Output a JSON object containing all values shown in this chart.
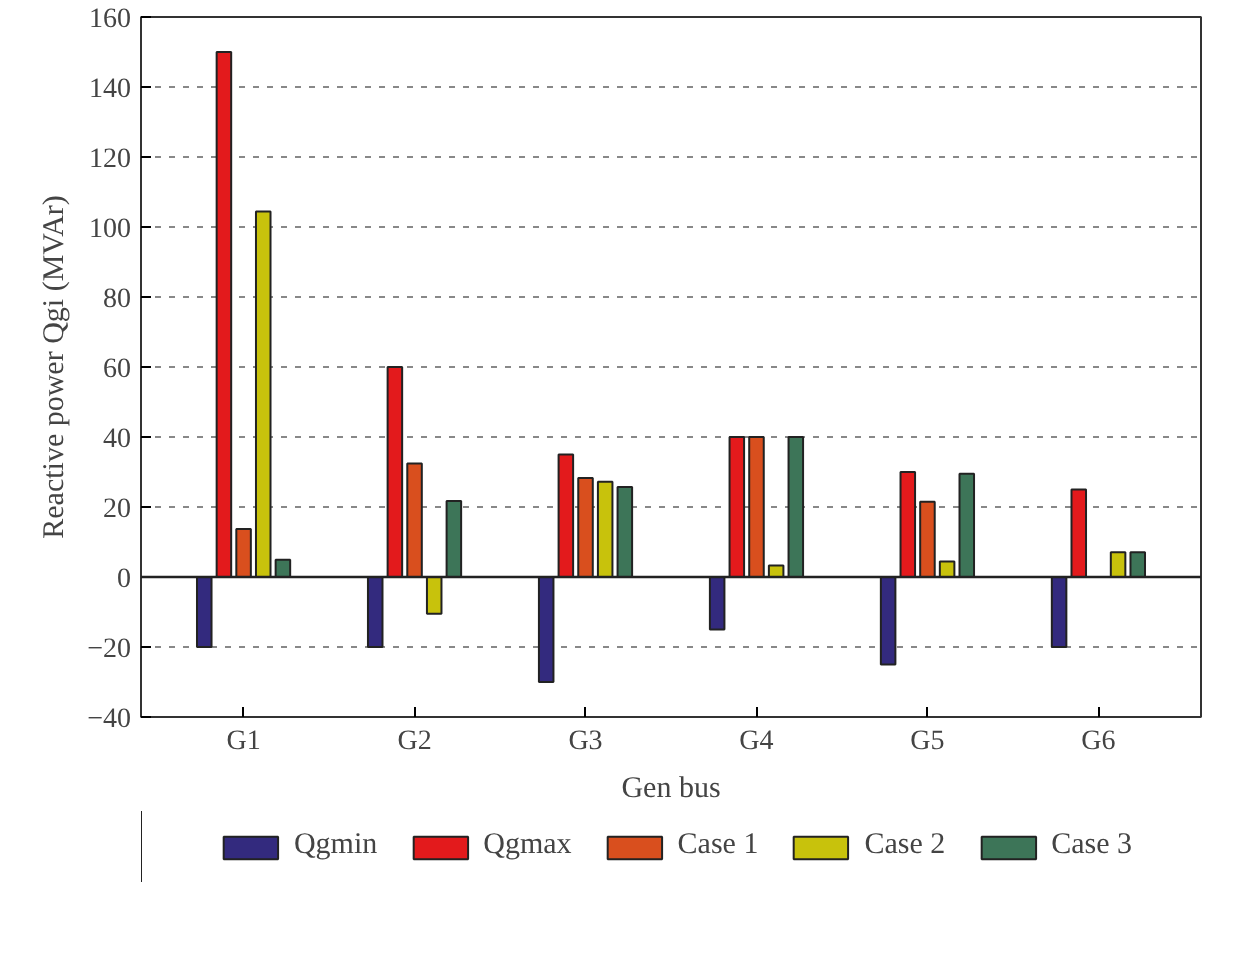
{
  "chart_data": {
    "type": "bar",
    "xlabel": "Gen bus",
    "ylabel": "Reactive power Qgi (MVAr)",
    "categories": [
      "G1",
      "G2",
      "G3",
      "G4",
      "G5",
      "G6"
    ],
    "series": [
      {
        "name": "Qgmin",
        "color": "#332a7e",
        "values": [
          -20,
          -20,
          -30,
          -15,
          -25,
          -20
        ]
      },
      {
        "name": "Qgmax",
        "color": "#e31a1c",
        "values": [
          150,
          60,
          35,
          40,
          30,
          25
        ]
      },
      {
        "name": "Case 1",
        "color": "#d94f1e",
        "values": [
          13.7,
          32.4,
          28.3,
          40,
          21.5,
          null
        ]
      },
      {
        "name": "Case 2",
        "color": "#c8c20c",
        "values": [
          104.4,
          -10.5,
          27.2,
          3.3,
          4.4,
          7.1
        ]
      },
      {
        "name": "Case 3",
        "color": "#3d7558",
        "values": [
          4.9,
          21.7,
          25.7,
          40,
          29.5,
          7.1
        ]
      }
    ],
    "ylim": [
      -40,
      160
    ],
    "yticks": [
      -40,
      -20,
      0,
      20,
      40,
      60,
      80,
      100,
      120,
      140,
      160
    ],
    "grid": "y",
    "legend": "bottom"
  }
}
